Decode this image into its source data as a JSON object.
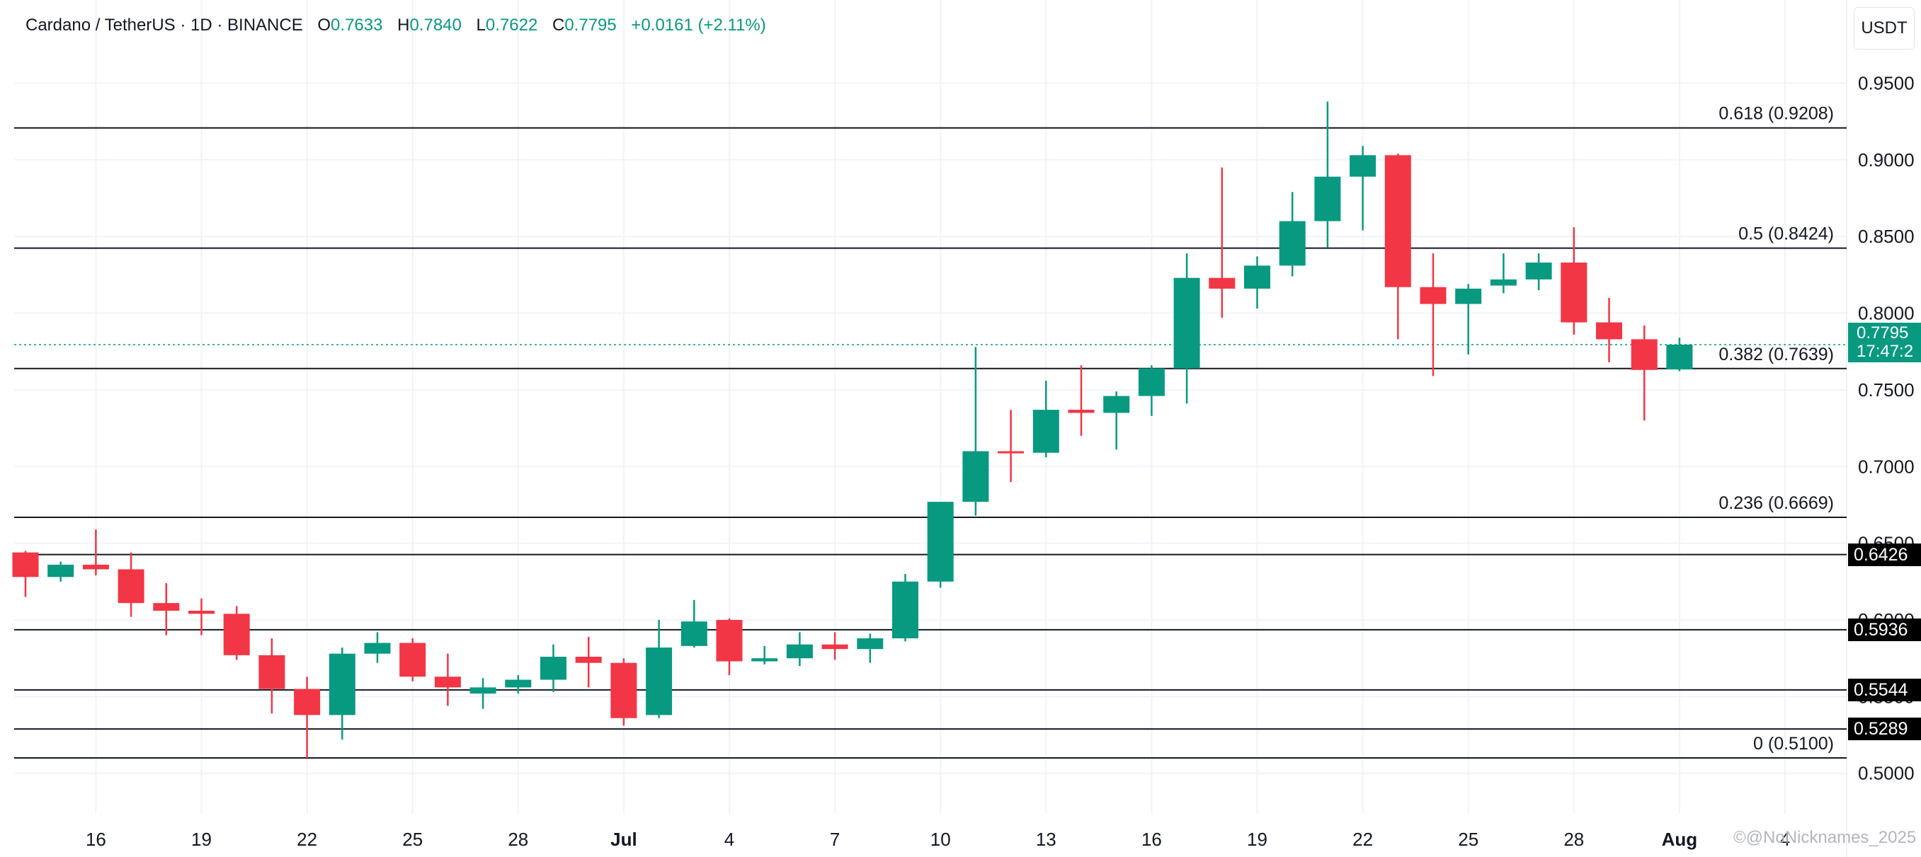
{
  "header": {
    "symbol": "Cardano / TetherUS · 1D · BINANCE",
    "open_label": "O",
    "open_value": "0.7633",
    "high_label": "H",
    "high_value": "0.7840",
    "low_label": "L",
    "low_value": "0.7622",
    "close_label": "C",
    "close_value": "0.7795",
    "change": "+0.0161 (+2.11%)"
  },
  "currency_button": "USDT",
  "current_price": {
    "value": "0.7795",
    "countdown": "17:47:2"
  },
  "watermark": "©@NoNicknames_2025",
  "colors": {
    "up": "#089981",
    "down": "#f23645",
    "text": "#131722",
    "grid": "#f0f3fa"
  },
  "chart_data": {
    "type": "candlestick",
    "x_tick_labels": [
      "16",
      "19",
      "22",
      "25",
      "28",
      "Jul",
      "4",
      "7",
      "10",
      "13",
      "16",
      "19",
      "22",
      "25",
      "28",
      "Aug",
      "4"
    ],
    "y_tick_labels": [
      "0.9500",
      "0.9000",
      "0.8500",
      "0.8000",
      "0.7500",
      "0.7000",
      "0.6500",
      "0.6000",
      "0.5500",
      "0.5000"
    ],
    "ylim": [
      0.4745,
      0.9765
    ],
    "grid": true,
    "fib_levels": [
      {
        "label": "0.618 (0.9208)",
        "value": 0.9208
      },
      {
        "label": "0.5 (0.8424)",
        "value": 0.8424
      },
      {
        "label": "0.382 (0.7639)",
        "value": 0.7639
      },
      {
        "label": "0.236 (0.6669)",
        "value": 0.6669
      },
      {
        "label": "0 (0.5100)",
        "value": 0.51
      }
    ],
    "hlines": [
      {
        "label": "0.6426",
        "value": 0.6426
      },
      {
        "label": "0.5936",
        "value": 0.5936
      },
      {
        "label": "0.5544",
        "value": 0.5544
      },
      {
        "label": "0.5289",
        "value": 0.5289
      }
    ],
    "last_price": 0.7795,
    "candles": [
      {
        "date": "Jun 14",
        "o": 0.644,
        "h": 0.645,
        "l": 0.615,
        "c": 0.628
      },
      {
        "date": "Jun 15",
        "o": 0.628,
        "h": 0.638,
        "l": 0.625,
        "c": 0.636
      },
      {
        "date": "Jun 16",
        "o": 0.636,
        "h": 0.659,
        "l": 0.629,
        "c": 0.633
      },
      {
        "date": "Jun 17",
        "o": 0.633,
        "h": 0.644,
        "l": 0.602,
        "c": 0.611
      },
      {
        "date": "Jun 18",
        "o": 0.611,
        "h": 0.624,
        "l": 0.59,
        "c": 0.606
      },
      {
        "date": "Jun 19",
        "o": 0.606,
        "h": 0.614,
        "l": 0.59,
        "c": 0.604
      },
      {
        "date": "Jun 20",
        "o": 0.604,
        "h": 0.609,
        "l": 0.574,
        "c": 0.577
      },
      {
        "date": "Jun 21",
        "o": 0.577,
        "h": 0.588,
        "l": 0.539,
        "c": 0.555
      },
      {
        "date": "Jun 22",
        "o": 0.555,
        "h": 0.563,
        "l": 0.51,
        "c": 0.538
      },
      {
        "date": "Jun 23",
        "o": 0.538,
        "h": 0.582,
        "l": 0.522,
        "c": 0.578
      },
      {
        "date": "Jun 24",
        "o": 0.578,
        "h": 0.592,
        "l": 0.572,
        "c": 0.585
      },
      {
        "date": "Jun 25",
        "o": 0.585,
        "h": 0.588,
        "l": 0.56,
        "c": 0.563
      },
      {
        "date": "Jun 26",
        "o": 0.563,
        "h": 0.578,
        "l": 0.544,
        "c": 0.556
      },
      {
        "date": "Jun 27",
        "o": 0.552,
        "h": 0.562,
        "l": 0.542,
        "c": 0.556
      },
      {
        "date": "Jun 28",
        "o": 0.556,
        "h": 0.564,
        "l": 0.552,
        "c": 0.561
      },
      {
        "date": "Jun 29",
        "o": 0.561,
        "h": 0.584,
        "l": 0.553,
        "c": 0.576
      },
      {
        "date": "Jun 30",
        "o": 0.576,
        "h": 0.589,
        "l": 0.556,
        "c": 0.572
      },
      {
        "date": "Jul 1",
        "o": 0.572,
        "h": 0.575,
        "l": 0.531,
        "c": 0.536
      },
      {
        "date": "Jul 2",
        "o": 0.538,
        "h": 0.6,
        "l": 0.536,
        "c": 0.582
      },
      {
        "date": "Jul 3",
        "o": 0.583,
        "h": 0.613,
        "l": 0.582,
        "c": 0.599
      },
      {
        "date": "Jul 4",
        "o": 0.6,
        "h": 0.601,
        "l": 0.564,
        "c": 0.573
      },
      {
        "date": "Jul 5",
        "o": 0.573,
        "h": 0.583,
        "l": 0.571,
        "c": 0.575
      },
      {
        "date": "Jul 6",
        "o": 0.575,
        "h": 0.592,
        "l": 0.57,
        "c": 0.584
      },
      {
        "date": "Jul 7",
        "o": 0.584,
        "h": 0.592,
        "l": 0.574,
        "c": 0.581
      },
      {
        "date": "Jul 8",
        "o": 0.581,
        "h": 0.591,
        "l": 0.572,
        "c": 0.588
      },
      {
        "date": "Jul 9",
        "o": 0.588,
        "h": 0.63,
        "l": 0.586,
        "c": 0.625
      },
      {
        "date": "Jul 10",
        "o": 0.625,
        "h": 0.677,
        "l": 0.621,
        "c": 0.677
      },
      {
        "date": "Jul 11",
        "o": 0.677,
        "h": 0.778,
        "l": 0.668,
        "c": 0.71
      },
      {
        "date": "Jul 12",
        "o": 0.71,
        "h": 0.737,
        "l": 0.69,
        "c": 0.709
      },
      {
        "date": "Jul 13",
        "o": 0.709,
        "h": 0.756,
        "l": 0.706,
        "c": 0.737
      },
      {
        "date": "Jul 14",
        "o": 0.737,
        "h": 0.766,
        "l": 0.72,
        "c": 0.735
      },
      {
        "date": "Jul 15",
        "o": 0.735,
        "h": 0.749,
        "l": 0.711,
        "c": 0.746
      },
      {
        "date": "Jul 16",
        "o": 0.746,
        "h": 0.766,
        "l": 0.733,
        "c": 0.764
      },
      {
        "date": "Jul 17",
        "o": 0.764,
        "h": 0.839,
        "l": 0.741,
        "c": 0.823
      },
      {
        "date": "Jul 18",
        "o": 0.823,
        "h": 0.895,
        "l": 0.797,
        "c": 0.816
      },
      {
        "date": "Jul 19",
        "o": 0.816,
        "h": 0.837,
        "l": 0.803,
        "c": 0.831
      },
      {
        "date": "Jul 20",
        "o": 0.831,
        "h": 0.879,
        "l": 0.824,
        "c": 0.86
      },
      {
        "date": "Jul 21",
        "o": 0.86,
        "h": 0.938,
        "l": 0.843,
        "c": 0.889
      },
      {
        "date": "Jul 22",
        "o": 0.889,
        "h": 0.909,
        "l": 0.854,
        "c": 0.903
      },
      {
        "date": "Jul 23",
        "o": 0.903,
        "h": 0.904,
        "l": 0.783,
        "c": 0.817
      },
      {
        "date": "Jul 24",
        "o": 0.817,
        "h": 0.839,
        "l": 0.759,
        "c": 0.806
      },
      {
        "date": "Jul 25",
        "o": 0.806,
        "h": 0.819,
        "l": 0.773,
        "c": 0.816
      },
      {
        "date": "Jul 26",
        "o": 0.818,
        "h": 0.839,
        "l": 0.813,
        "c": 0.822
      },
      {
        "date": "Jul 27",
        "o": 0.822,
        "h": 0.839,
        "l": 0.815,
        "c": 0.833
      },
      {
        "date": "Jul 28",
        "o": 0.833,
        "h": 0.856,
        "l": 0.786,
        "c": 0.794
      },
      {
        "date": "Jul 29",
        "o": 0.794,
        "h": 0.81,
        "l": 0.768,
        "c": 0.783
      },
      {
        "date": "Jul 30",
        "o": 0.783,
        "h": 0.792,
        "l": 0.73,
        "c": 0.763
      },
      {
        "date": "Jul 31",
        "o": 0.7633,
        "h": 0.784,
        "l": 0.7622,
        "c": 0.7795
      }
    ]
  }
}
